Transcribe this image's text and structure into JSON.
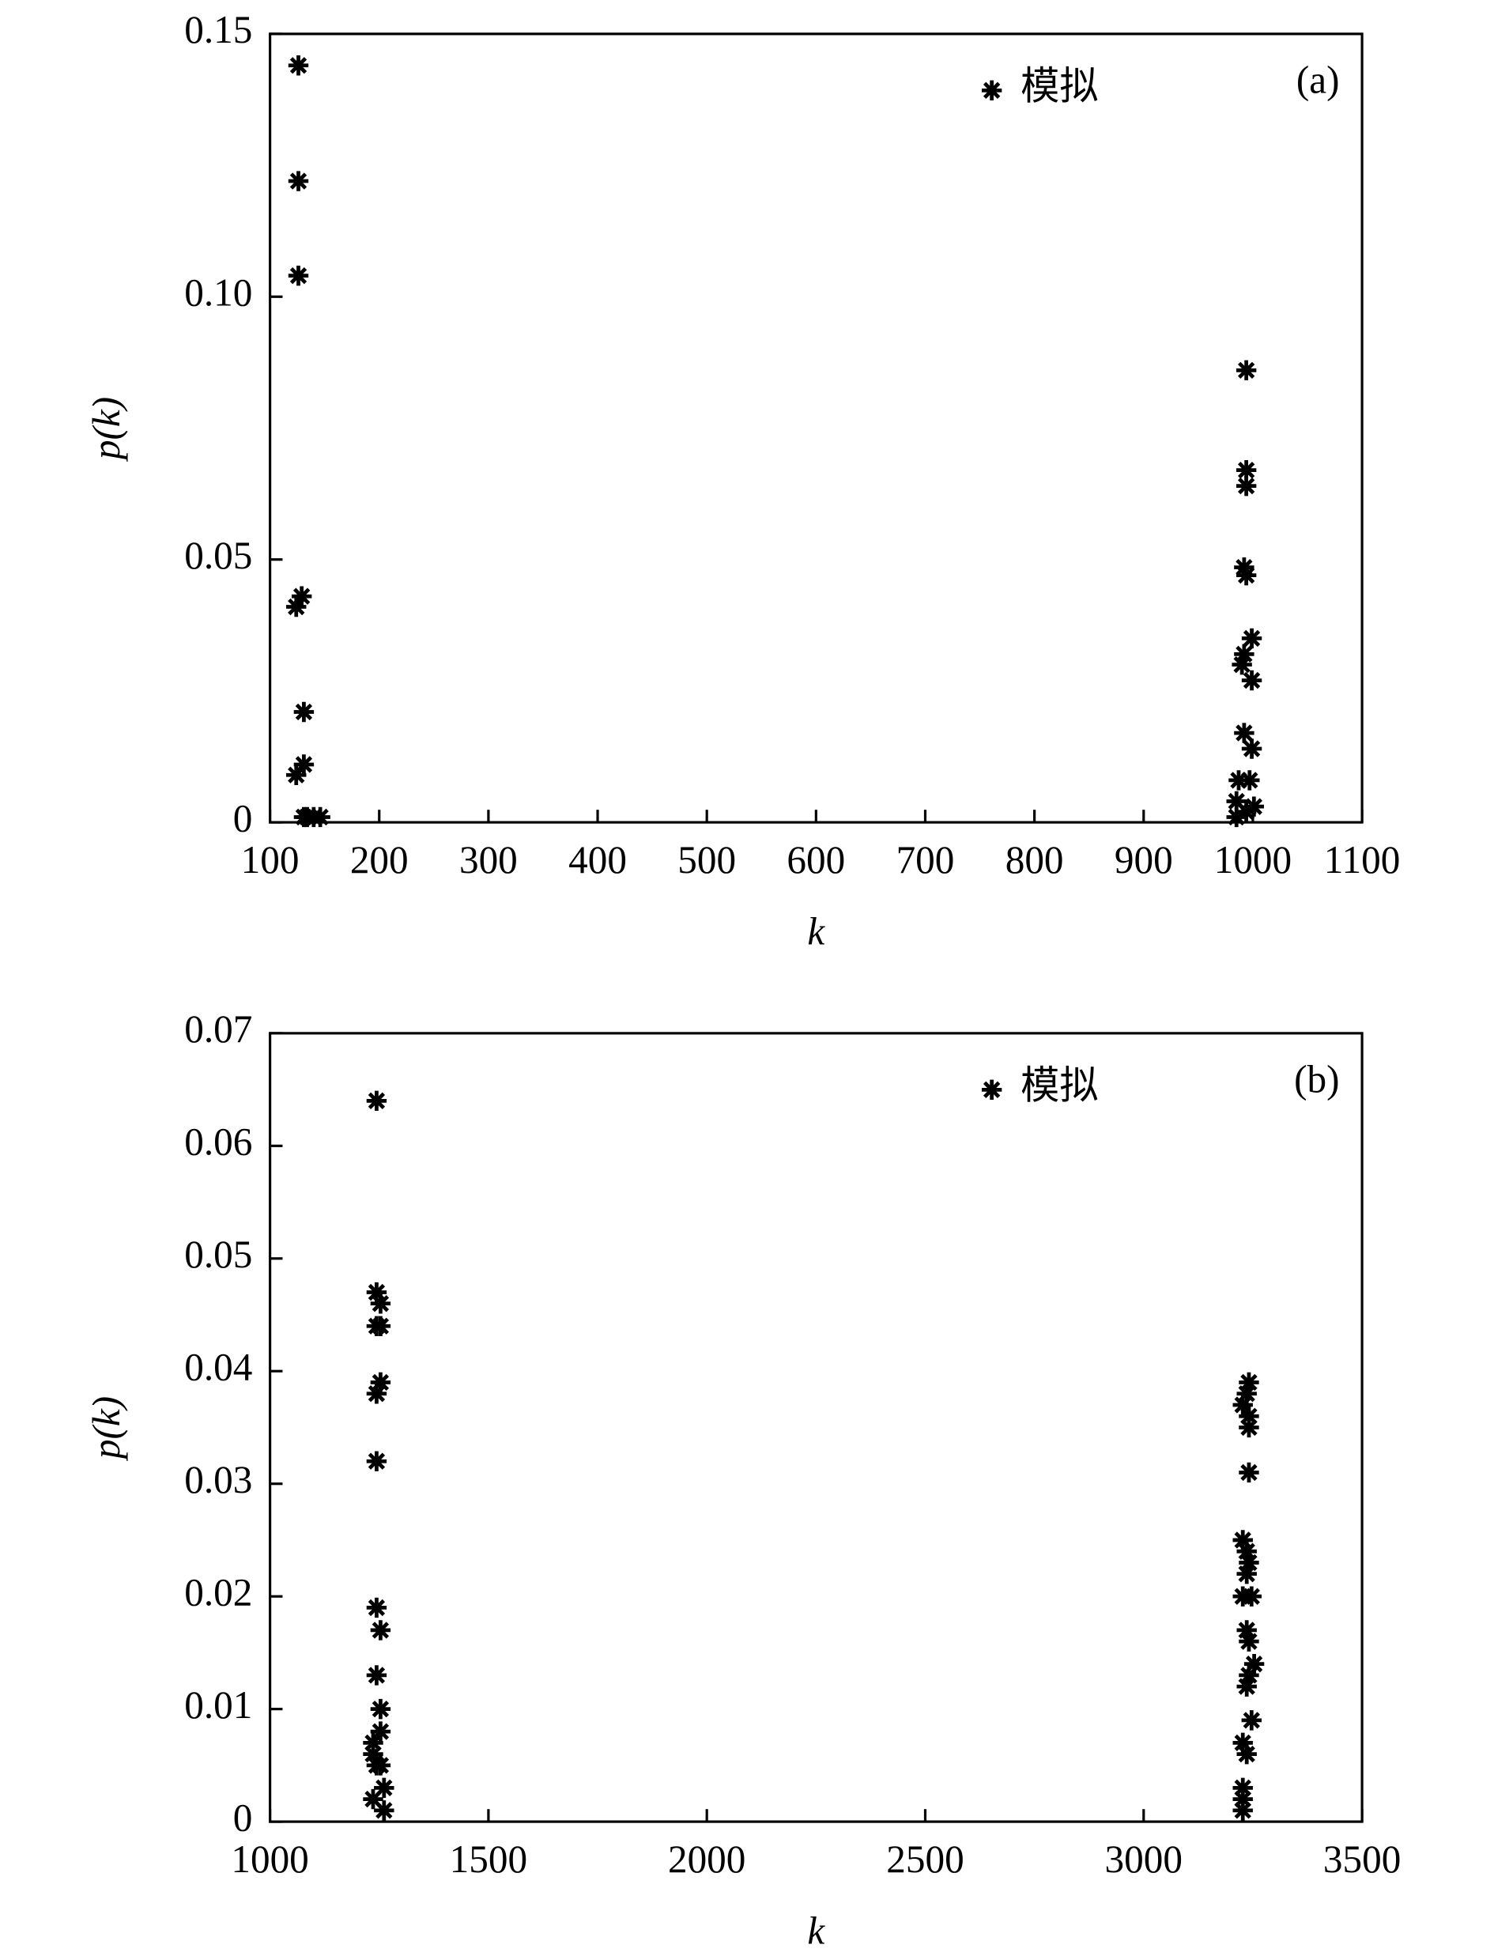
{
  "chart_data": [
    {
      "type": "scatter",
      "annotation": "(a)",
      "xlabel": "k",
      "ylabel": "p(k)",
      "xlim": [
        100,
        1100
      ],
      "xticks": [
        100,
        200,
        300,
        400,
        500,
        600,
        700,
        800,
        900,
        1000,
        1100
      ],
      "ylim": [
        0,
        0.15
      ],
      "yticks": [
        0,
        0.05,
        {
          "value": 0.1,
          "label": "0.10"
        },
        0.15
      ],
      "legend": "upper right",
      "series": [
        {
          "name": "模拟",
          "color": "#000000",
          "x": [
            126,
            126,
            126,
            124,
            129,
            131,
            131,
            124,
            131,
            134,
            140,
            146,
            994,
            994,
            994,
            992,
            994,
            999,
            992,
            990,
            999,
            992,
            999,
            997,
            987,
            985,
            1001,
            985,
            994
          ],
          "values": [
            0.144,
            0.122,
            0.104,
            0.041,
            0.043,
            0.021,
            0.011,
            0.009,
            0.001,
            0.001,
            0.001,
            0.001,
            0.086,
            0.067,
            0.064,
            0.0485,
            0.047,
            0.035,
            0.032,
            0.03,
            0.027,
            0.017,
            0.014,
            0.008,
            0.008,
            0.004,
            0.003,
            0.001,
            0.002
          ]
        }
      ]
    },
    {
      "type": "scatter",
      "annotation": "(b)",
      "xlabel": "k",
      "ylabel": "p(k)",
      "xlim": [
        1000,
        3500
      ],
      "xticks": [
        1000,
        1500,
        2000,
        2500,
        3000,
        3500
      ],
      "ylim": [
        0,
        0.07
      ],
      "yticks": [
        0,
        0.01,
        0.02,
        0.03,
        0.04,
        0.05,
        0.06,
        0.07
      ],
      "legend": "upper right",
      "series": [
        {
          "name": "模拟",
          "color": "#000000",
          "x": [
            1244,
            1244,
            1253,
            1244,
            1253,
            1253,
            1244,
            1244,
            1244,
            1253,
            1244,
            1253,
            1253,
            1236,
            1236,
            1244,
            1253,
            1236,
            1261,
            1261,
            3241,
            3236,
            3227,
            3241,
            3241,
            3241,
            3227,
            3236,
            3241,
            3236,
            3227,
            3247,
            3236,
            3241,
            3253,
            3241,
            3236,
            3227,
            3236,
            3247,
            3227,
            3227,
            3227
          ],
          "values": [
            0.064,
            0.047,
            0.046,
            0.044,
            0.044,
            0.039,
            0.038,
            0.032,
            0.019,
            0.017,
            0.013,
            0.01,
            0.008,
            0.007,
            0.006,
            0.005,
            0.005,
            0.002,
            0.003,
            0.001,
            0.039,
            0.038,
            0.037,
            0.036,
            0.035,
            0.031,
            0.025,
            0.024,
            0.023,
            0.022,
            0.02,
            0.02,
            0.017,
            0.016,
            0.014,
            0.013,
            0.012,
            0.007,
            0.006,
            0.009,
            0.003,
            0.002,
            0.001
          ]
        }
      ]
    }
  ]
}
